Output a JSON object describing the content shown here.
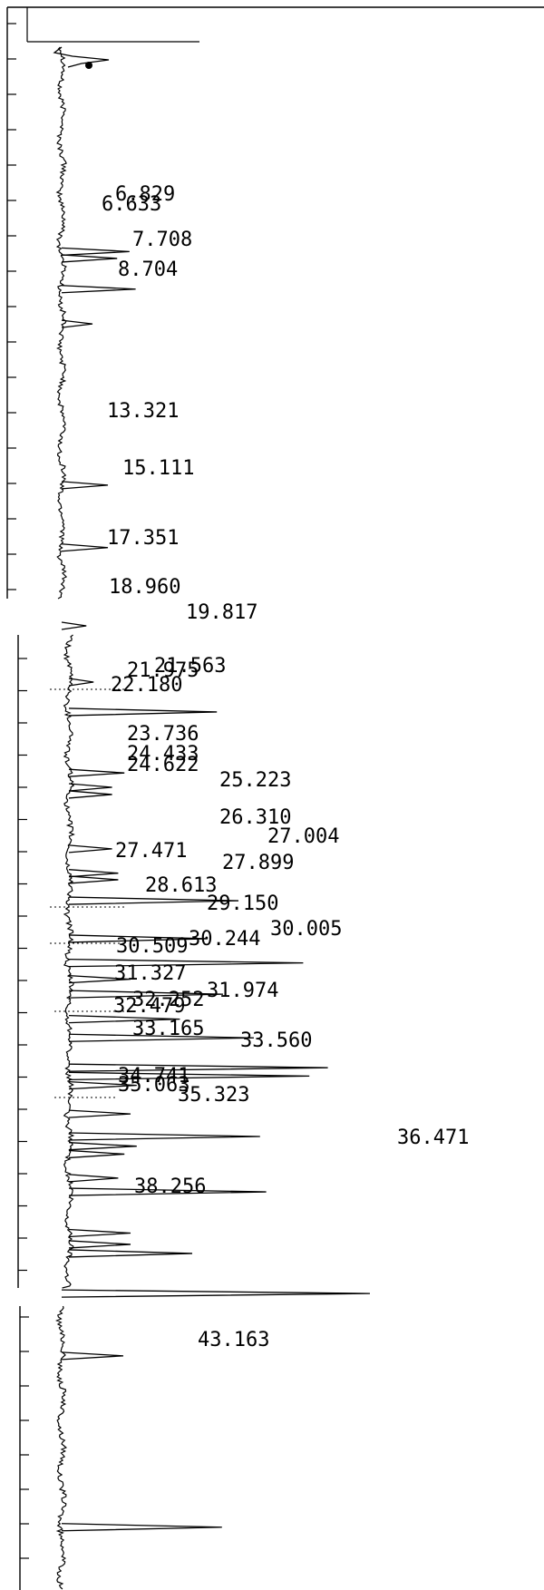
{
  "chart_data": {
    "type": "line",
    "orientation": "vertical",
    "x_direction": "top-to-bottom",
    "grid": false,
    "peaks": [
      {
        "label": "6.633",
        "height": 0.22
      },
      {
        "label": "6.829",
        "height": 0.18
      },
      {
        "label": "7.708",
        "height": 0.24
      },
      {
        "label": "8.704",
        "height": 0.1
      },
      {
        "label": "13.321",
        "height": 0.15
      },
      {
        "label": "15.111",
        "height": 0.15
      },
      {
        "label": "17.351",
        "height": 0.08
      },
      {
        "label": "18.960",
        "height": 0.08
      },
      {
        "label": "19.817",
        "height": 0.48
      },
      {
        "label": "21.563",
        "height": 0.18
      },
      {
        "label": "21.975",
        "height": 0.14
      },
      {
        "label": "22.180",
        "height": 0.14
      },
      {
        "label": "23.736",
        "height": 0.14
      },
      {
        "label": "24.433",
        "height": 0.16
      },
      {
        "label": "24.622",
        "height": 0.16
      },
      {
        "label": "25.223",
        "height": 0.55
      },
      {
        "label": "26.310",
        "height": 0.45
      },
      {
        "label": "27.004",
        "height": 0.76
      },
      {
        "label": "27.471",
        "height": 0.2
      },
      {
        "label": "27.899",
        "height": 0.5
      },
      {
        "label": "28.613",
        "height": 0.36
      },
      {
        "label": "29.150",
        "height": 0.6
      },
      {
        "label": "30.005",
        "height": 0.84
      },
      {
        "label": "30.244",
        "height": 0.78
      },
      {
        "label": "30.509",
        "height": 0.22
      },
      {
        "label": "31.327",
        "height": 0.2
      },
      {
        "label": "31.974",
        "height": 0.62
      },
      {
        "label": "32.252",
        "height": 0.22
      },
      {
        "label": "32.479",
        "height": 0.18
      },
      {
        "label": "33.165",
        "height": 0.16
      },
      {
        "label": "33.560",
        "height": 0.64
      },
      {
        "label": "34.741",
        "height": 0.2
      },
      {
        "label": "35.063",
        "height": 0.2
      },
      {
        "label": "35.323",
        "height": 0.4
      },
      {
        "label": "36.471",
        "height": 1.0
      },
      {
        "label": "38.256",
        "height": 0.2
      },
      {
        "label": "43.163",
        "height": 0.52
      }
    ]
  }
}
